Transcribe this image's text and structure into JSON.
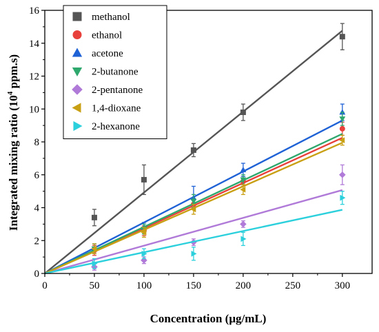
{
  "chart_data": {
    "type": "scatter",
    "title": "",
    "xlabel": "Concentration (μg/mL)",
    "ylabel_main": "Integrated mixing ratio (10",
    "ylabel_sup": "4",
    "ylabel_tail": " ppm.s)",
    "xlim": [
      0,
      330
    ],
    "ylim": [
      0,
      16
    ],
    "xticks": [
      0,
      50,
      100,
      150,
      200,
      250,
      300
    ],
    "yticks": [
      0,
      2,
      4,
      6,
      8,
      10,
      12,
      14,
      16
    ],
    "grid": false,
    "legend_position": "top-left",
    "fit_lines": true,
    "series": [
      {
        "name": "methanol",
        "marker": "square",
        "color": "#555555",
        "x": [
          50,
          100,
          150,
          200,
          300
        ],
        "y": [
          3.4,
          5.7,
          7.5,
          9.8,
          14.4
        ],
        "err": [
          0.5,
          0.9,
          0.4,
          0.5,
          0.8
        ],
        "slope": 0.0492
      },
      {
        "name": "ethanol",
        "marker": "circle",
        "color": "#e8413b",
        "x": [
          50,
          100,
          150,
          200,
          300
        ],
        "y": [
          1.4,
          2.6,
          4.2,
          5.6,
          8.8
        ],
        "err": [
          0.3,
          0.3,
          0.3,
          0.3,
          0.4
        ],
        "slope": 0.0275
      },
      {
        "name": "acetone",
        "marker": "triangle-up",
        "color": "#1f62d6",
        "x": [
          50,
          100,
          150,
          200,
          300
        ],
        "y": [
          1.5,
          2.8,
          4.6,
          6.3,
          9.8
        ],
        "err": [
          0.3,
          0.3,
          0.7,
          0.4,
          0.5
        ],
        "slope": 0.031
      },
      {
        "name": "2-butanone",
        "marker": "triangle-down",
        "color": "#2fa86e",
        "x": [
          50,
          100,
          150,
          200,
          300
        ],
        "y": [
          1.5,
          2.7,
          4.4,
          5.7,
          9.4
        ],
        "err": [
          0.3,
          0.3,
          0.4,
          0.3,
          0.4
        ],
        "slope": 0.0283
      },
      {
        "name": "2-pentanone",
        "marker": "diamond",
        "color": "#b07ad8",
        "x": [
          50,
          100,
          150,
          200,
          300
        ],
        "y": [
          0.4,
          0.8,
          1.9,
          3.0,
          6.0
        ],
        "err": [
          0.2,
          0.2,
          0.2,
          0.2,
          0.6
        ],
        "slope": 0.0169
      },
      {
        "name": "1,4-dioxane",
        "marker": "triangle-left",
        "color": "#c9a014",
        "x": [
          50,
          100,
          150,
          200,
          300
        ],
        "y": [
          1.5,
          2.5,
          3.9,
          5.1,
          8.1
        ],
        "err": [
          0.3,
          0.3,
          0.3,
          0.3,
          0.3
        ],
        "slope": 0.0265
      },
      {
        "name": "2-hexanone",
        "marker": "triangle-right",
        "color": "#2bd0dc",
        "x": [
          50,
          100,
          150,
          200,
          300
        ],
        "y": [
          0.6,
          1.2,
          1.2,
          2.1,
          4.6
        ],
        "err": [
          0.3,
          0.3,
          0.4,
          0.4,
          0.4
        ],
        "slope": 0.0129
      }
    ]
  }
}
